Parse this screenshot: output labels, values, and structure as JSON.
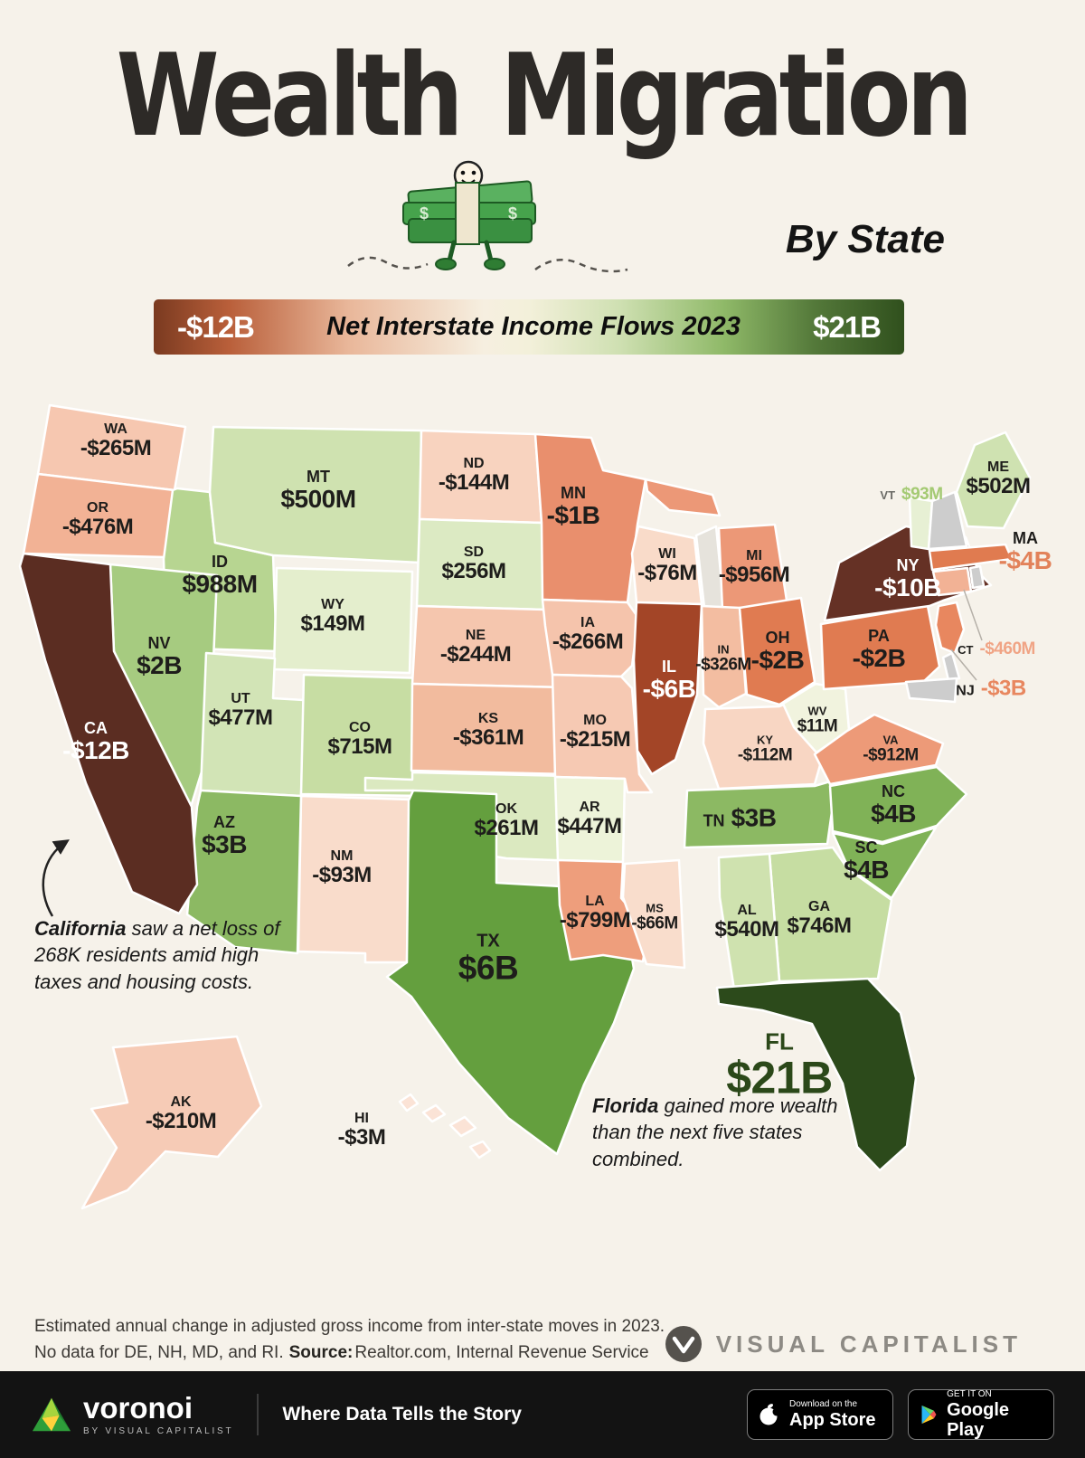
{
  "header": {
    "title": "Wealth Migration",
    "subtitle": "By State"
  },
  "legend": {
    "min_label": "-$12B",
    "title": "Net Interstate Income Flows 2023",
    "max_label": "$21B",
    "gradient": [
      "#7a3a20",
      "#f6efe0",
      "#30501d"
    ]
  },
  "chart_data": {
    "type": "heatmap",
    "subtype": "choropleth-us-map",
    "title": "Net Interstate Income Flows 2023",
    "units": "net change in adjusted gross income (USD)",
    "range_min_label": "-$12B",
    "range_max_label": "$21B",
    "no_data_states": [
      "DE",
      "NH",
      "MD",
      "RI"
    ],
    "states": [
      {
        "abbr": "WA",
        "value": "-$265M",
        "fill": "#f6c7b0"
      },
      {
        "abbr": "OR",
        "value": "-$476M",
        "fill": "#f2b295"
      },
      {
        "abbr": "CA",
        "value": "-$12B",
        "fill": "#5b2d22",
        "text_color": "#ffffff"
      },
      {
        "abbr": "NV",
        "value": "$2B",
        "fill": "#a6cb80"
      },
      {
        "abbr": "ID",
        "value": "$988M",
        "fill": "#b7d591"
      },
      {
        "abbr": "MT",
        "value": "$500M",
        "fill": "#cfe2b0"
      },
      {
        "abbr": "WY",
        "value": "$149M",
        "fill": "#e4eecd"
      },
      {
        "abbr": "UT",
        "value": "$477M",
        "fill": "#d2e4b6"
      },
      {
        "abbr": "CO",
        "value": "$715M",
        "fill": "#c7dda3"
      },
      {
        "abbr": "AZ",
        "value": "$3B",
        "fill": "#8cb963"
      },
      {
        "abbr": "NM",
        "value": "-$93M",
        "fill": "#f9dccb"
      },
      {
        "abbr": "ND",
        "value": "-$144M",
        "fill": "#f8d3bf"
      },
      {
        "abbr": "SD",
        "value": "$256M",
        "fill": "#dceac3"
      },
      {
        "abbr": "NE",
        "value": "-$244M",
        "fill": "#f5c6ae"
      },
      {
        "abbr": "KS",
        "value": "-$361M",
        "fill": "#f2bb9e"
      },
      {
        "abbr": "OK",
        "value": "$261M",
        "fill": "#dbe9c0"
      },
      {
        "abbr": "TX",
        "value": "$6B",
        "fill": "#649f3e"
      },
      {
        "abbr": "MN",
        "value": "-$1B",
        "fill": "#e98f6d"
      },
      {
        "abbr": "IA",
        "value": "-$266M",
        "fill": "#f5c4ac"
      },
      {
        "abbr": "MO",
        "value": "-$215M",
        "fill": "#f6c9b3"
      },
      {
        "abbr": "AR",
        "value": "$447M",
        "fill": "#edf3d9"
      },
      {
        "abbr": "LA",
        "value": "-$799M",
        "fill": "#ee9e7c"
      },
      {
        "abbr": "WI",
        "value": "-$76M",
        "fill": "#f9dbc9"
      },
      {
        "abbr": "IL",
        "value": "-$6B",
        "fill": "#a34527",
        "text_color": "#ffffff"
      },
      {
        "abbr": "MS",
        "value": "-$66M",
        "fill": "#f9ddcc"
      },
      {
        "abbr": "MI",
        "value": "-$956M",
        "fill": "#ec9877"
      },
      {
        "abbr": "IN",
        "value": "-$326M",
        "fill": "#f3bda1"
      },
      {
        "abbr": "OH",
        "value": "-$2B",
        "fill": "#e07b51"
      },
      {
        "abbr": "KY",
        "value": "-$112M",
        "fill": "#f8d6c3"
      },
      {
        "abbr": "TN",
        "value": "$3B",
        "fill": "#8cb963"
      },
      {
        "abbr": "AL",
        "value": "$540M",
        "fill": "#cfe2af"
      },
      {
        "abbr": "GA",
        "value": "$746M",
        "fill": "#c6dda2"
      },
      {
        "abbr": "FL",
        "value": "$21B",
        "fill": "#2c4a1b",
        "text_color": "#2b4819"
      },
      {
        "abbr": "SC",
        "value": "$4B",
        "fill": "#80b257"
      },
      {
        "abbr": "NC",
        "value": "$4B",
        "fill": "#80b257"
      },
      {
        "abbr": "VA",
        "value": "-$912M",
        "fill": "#ed9a78"
      },
      {
        "abbr": "WV",
        "value": "$11M",
        "fill": "#f1f3de"
      },
      {
        "abbr": "PA",
        "value": "-$2B",
        "fill": "#e07b51"
      },
      {
        "abbr": "NY",
        "value": "-$10B",
        "fill": "#653125",
        "text_color": "#ffffff"
      },
      {
        "abbr": "VT",
        "value": "$93M",
        "fill": "#e7f0d4",
        "value_color": "#a4ca73",
        "abbr_color": "#6b6b66"
      },
      {
        "abbr": "ME",
        "value": "$502M",
        "fill": "#cfe2b1"
      },
      {
        "abbr": "MA",
        "value": "-$4B",
        "fill": "#e07b50",
        "value_color": "#e2825a"
      },
      {
        "abbr": "CT",
        "value": "-$460M",
        "fill": "#f2b295",
        "value_color": "#f0a485"
      },
      {
        "abbr": "NJ",
        "value": "-$3B",
        "fill": "#e8875f",
        "value_color": "#e8875f"
      },
      {
        "abbr": "AK",
        "value": "-$210M",
        "fill": "#f6cbb6"
      },
      {
        "abbr": "HI",
        "value": "-$3M",
        "fill": "#fbe3d6"
      }
    ]
  },
  "map": {
    "no_data_fill": "#cdcdcd",
    "lake_fill": "#e6e3dc"
  },
  "annotations": {
    "california": {
      "bold": "California",
      "text": " saw a net loss of 268K residents amid high taxes and housing costs."
    },
    "florida": {
      "bold": "Florida",
      "text": " gained more wealth than the next five states combined."
    }
  },
  "footer": {
    "line1": "Estimated annual change in adjusted gross income from inter-state moves in 2023.",
    "line2_prefix": "No data for DE, NH, MD, and RI.",
    "source_label": "Source:",
    "source_text": "Realtor.com, Internal Revenue Service",
    "visual_capitalist": "VISUAL CAPITALIST"
  },
  "bottombar": {
    "brand": "voronoi",
    "brand_sub": "BY VISUAL CAPITALIST",
    "tagline": "Where Data Tells the Story",
    "badges": [
      {
        "line1": "Download on the",
        "line2": "App Store"
      },
      {
        "line1": "GET IT ON",
        "line2": "Google Play"
      }
    ]
  },
  "colors": {
    "background": "#f6f2ea",
    "bottom_bar": "#131313"
  }
}
